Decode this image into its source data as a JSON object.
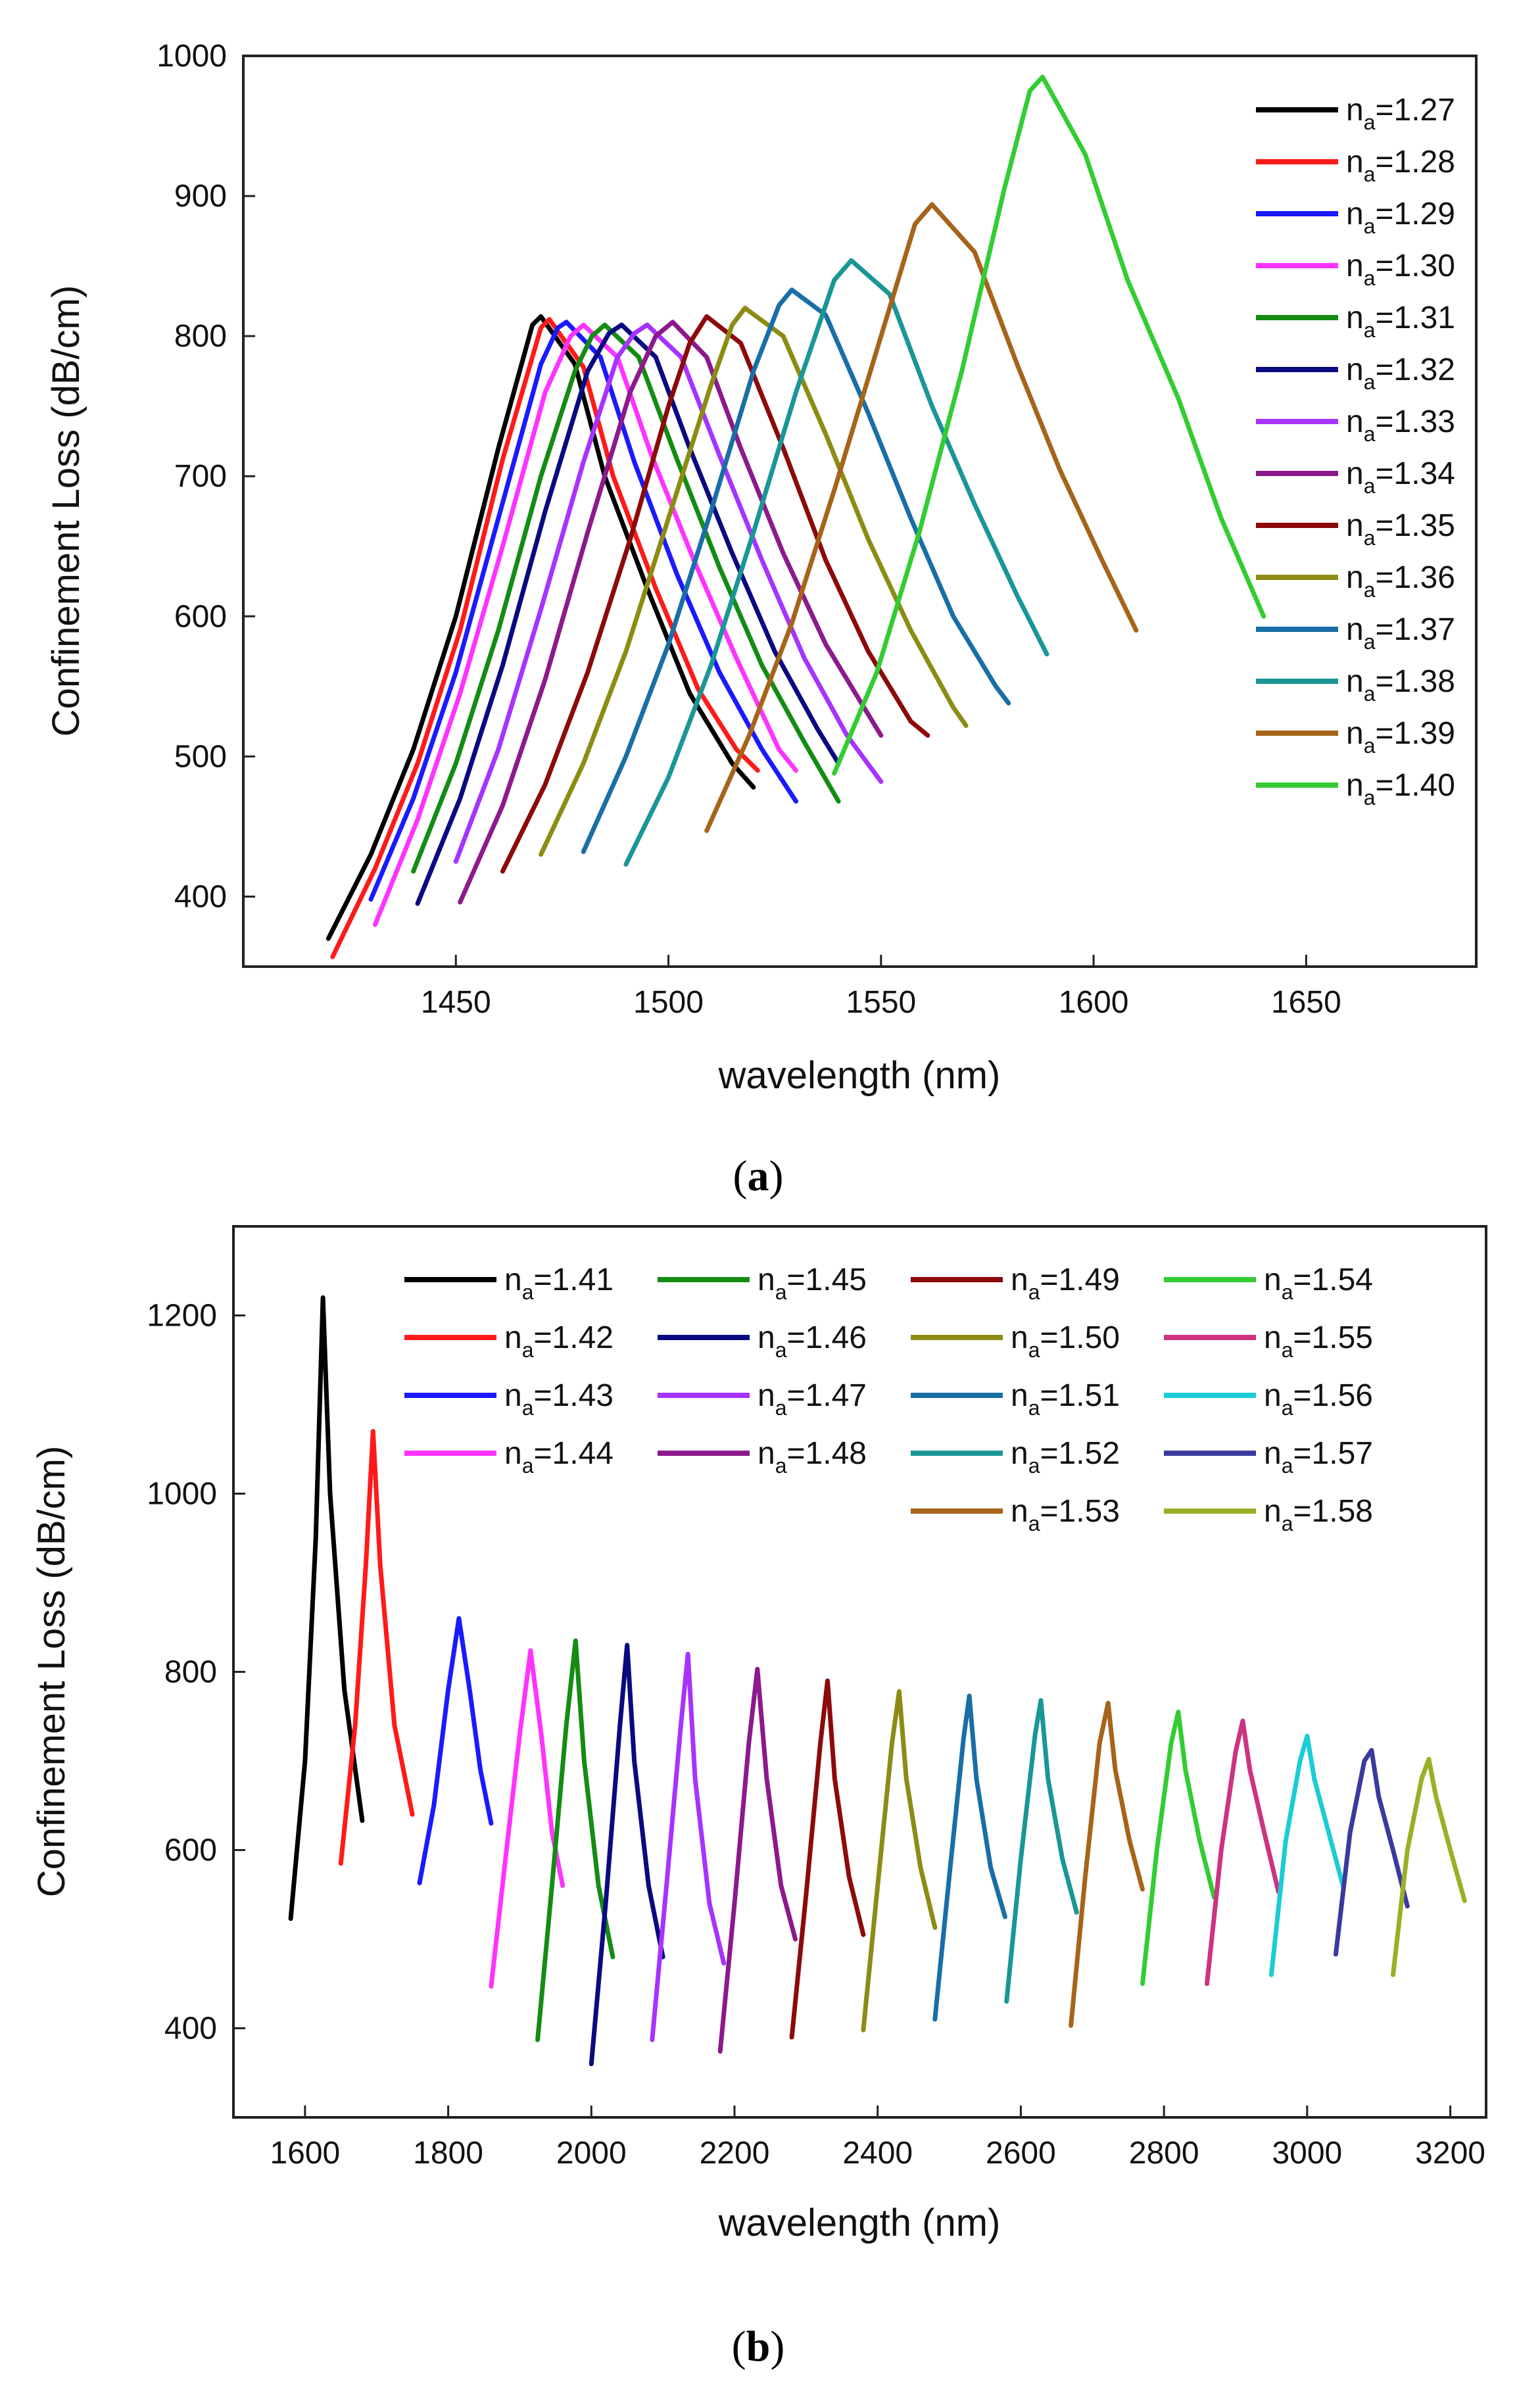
{
  "chart_data": [
    {
      "type": "line",
      "caption": "a",
      "xlabel": "wavelength (nm)",
      "ylabel": "Confinement  Loss (dB/cm)",
      "xlim": [
        1400,
        1690
      ],
      "ylim": [
        350,
        1000
      ],
      "xticks": [
        1450,
        1500,
        1550,
        1600,
        1650
      ],
      "yticks": [
        400,
        500,
        600,
        700,
        800,
        900,
        1000
      ],
      "legend_position": "top-right",
      "series": [
        {
          "name": "n_a=1.27",
          "sub": "a",
          "value": "1.27",
          "color": "#000000",
          "x": [
            1420,
            1430,
            1440,
            1450,
            1460,
            1468,
            1470,
            1478,
            1485,
            1495,
            1505,
            1515,
            1520
          ],
          "y": [
            370,
            430,
            505,
            600,
            720,
            808,
            814,
            780,
            700,
            620,
            545,
            495,
            478
          ]
        },
        {
          "name": "n_a=1.28",
          "sub": "a",
          "value": "1.28",
          "color": "#ff1a1a",
          "x": [
            1421,
            1431,
            1441,
            1451,
            1461,
            1470,
            1472,
            1480,
            1487,
            1497,
            1507,
            1516,
            1521
          ],
          "y": [
            357,
            420,
            495,
            590,
            712,
            806,
            812,
            778,
            700,
            620,
            548,
            505,
            490
          ]
        },
        {
          "name": "n_a=1.29",
          "sub": "a",
          "value": "1.29",
          "color": "#1a1aff",
          "x": [
            1430,
            1440,
            1450,
            1460,
            1470,
            1474,
            1476,
            1484,
            1492,
            1502,
            1512,
            1522,
            1530
          ],
          "y": [
            398,
            470,
            560,
            670,
            780,
            806,
            810,
            785,
            710,
            630,
            560,
            505,
            468
          ]
        },
        {
          "name": "n_a=1.30",
          "sub": "a",
          "value": "1.30",
          "color": "#ff33ff",
          "x": [
            1431,
            1441,
            1451,
            1461,
            1471,
            1477,
            1480,
            1488,
            1496,
            1506,
            1516,
            1526,
            1530
          ],
          "y": [
            380,
            455,
            545,
            650,
            760,
            800,
            808,
            785,
            715,
            640,
            570,
            505,
            490
          ]
        },
        {
          "name": "n_a=1.31",
          "sub": "a",
          "value": "1.31",
          "color": "#148c14",
          "x": [
            1440,
            1450,
            1460,
            1470,
            1478,
            1482,
            1485,
            1493,
            1502,
            1512,
            1522,
            1532,
            1540
          ],
          "y": [
            418,
            495,
            590,
            700,
            775,
            800,
            808,
            785,
            712,
            635,
            565,
            510,
            468
          ]
        },
        {
          "name": "n_a=1.32",
          "sub": "a",
          "value": "1.32",
          "color": "#0a0a80",
          "x": [
            1441,
            1451,
            1461,
            1471,
            1481,
            1486,
            1489,
            1497,
            1505,
            1515,
            1525,
            1535,
            1540
          ],
          "y": [
            395,
            470,
            565,
            675,
            775,
            802,
            808,
            785,
            720,
            645,
            575,
            520,
            495
          ]
        },
        {
          "name": "n_a=1.33",
          "sub": "a",
          "value": "1.33",
          "color": "#a633ff",
          "x": [
            1450,
            1460,
            1470,
            1480,
            1488,
            1492,
            1495,
            1503,
            1512,
            1522,
            1532,
            1542,
            1550
          ],
          "y": [
            425,
            505,
            605,
            710,
            785,
            802,
            808,
            785,
            715,
            640,
            570,
            515,
            482
          ]
        },
        {
          "name": "n_a=1.34",
          "sub": "a",
          "value": "1.34",
          "color": "#8c1a8c",
          "x": [
            1451,
            1461,
            1471,
            1481,
            1491,
            1497,
            1501,
            1509,
            1517,
            1527,
            1537,
            1547,
            1550
          ],
          "y": [
            396,
            465,
            555,
            660,
            760,
            800,
            810,
            785,
            720,
            645,
            580,
            530,
            515
          ]
        },
        {
          "name": "n_a=1.35",
          "sub": "a",
          "value": "1.35",
          "color": "#8c0a0a",
          "x": [
            1461,
            1471,
            1481,
            1491,
            1500,
            1505,
            1509,
            1517,
            1527,
            1537,
            1547,
            1557,
            1561
          ],
          "y": [
            418,
            480,
            560,
            655,
            750,
            795,
            814,
            795,
            720,
            640,
            575,
            525,
            515
          ]
        },
        {
          "name": "n_a=1.36",
          "sub": "a",
          "value": "1.36",
          "color": "#8c8c14",
          "x": [
            1470,
            1480,
            1490,
            1500,
            1510,
            1515,
            1518,
            1527,
            1537,
            1547,
            1557,
            1567,
            1570
          ],
          "y": [
            430,
            495,
            575,
            670,
            765,
            808,
            820,
            800,
            730,
            655,
            590,
            535,
            522
          ]
        },
        {
          "name": "n_a=1.37",
          "sub": "a",
          "value": "1.37",
          "color": "#1a6ea6",
          "x": [
            1480,
            1490,
            1500,
            1510,
            1520,
            1526,
            1529,
            1537,
            1547,
            1557,
            1567,
            1577,
            1580
          ],
          "y": [
            432,
            500,
            580,
            675,
            775,
            822,
            833,
            815,
            745,
            670,
            600,
            550,
            538
          ]
        },
        {
          "name": "n_a=1.38",
          "sub": "a",
          "value": "1.38",
          "color": "#1a9696",
          "x": [
            1490,
            1500,
            1510,
            1520,
            1530,
            1539,
            1543,
            1552,
            1562,
            1572,
            1582,
            1589
          ],
          "y": [
            423,
            485,
            565,
            660,
            760,
            840,
            854,
            830,
            750,
            680,
            615,
            573
          ]
        },
        {
          "name": "n_a=1.39",
          "sub": "a",
          "value": "1.39",
          "color": "#a6641a",
          "x": [
            1509,
            1519,
            1529,
            1539,
            1549,
            1558,
            1562,
            1572,
            1582,
            1592,
            1602,
            1610
          ],
          "y": [
            447,
            515,
            595,
            690,
            790,
            880,
            894,
            860,
            780,
            705,
            640,
            590
          ]
        },
        {
          "name": "n_a=1.40",
          "sub": "a",
          "value": "1.40",
          "color": "#33cc33",
          "x": [
            1539,
            1549,
            1559,
            1569,
            1579,
            1585,
            1588,
            1598,
            1608,
            1620,
            1630,
            1640
          ],
          "y": [
            488,
            560,
            660,
            775,
            905,
            975,
            985,
            930,
            840,
            755,
            670,
            600
          ]
        }
      ]
    },
    {
      "type": "line",
      "caption": "b",
      "xlabel": "wavelength (nm)",
      "ylabel": "Confinement  Loss (dB/cm)",
      "xlim": [
        1500,
        3250
      ],
      "ylim": [
        300,
        1300
      ],
      "xticks": [
        1600,
        1800,
        2000,
        2200,
        2400,
        2600,
        2800,
        3000,
        3200
      ],
      "yticks": [
        400,
        600,
        800,
        1000,
        1200
      ],
      "legend_position": "top",
      "series": [
        {
          "name": "n_a=1.41",
          "sub": "a",
          "value": "1.41",
          "color": "#000000",
          "x": [
            1580,
            1600,
            1615,
            1625,
            1635,
            1655,
            1680
          ],
          "y": [
            523,
            700,
            950,
            1220,
            1000,
            780,
            633
          ]
        },
        {
          "name": "n_a=1.42",
          "sub": "a",
          "value": "1.42",
          "color": "#ff1a1a",
          "x": [
            1650,
            1670,
            1685,
            1695,
            1705,
            1725,
            1750
          ],
          "y": [
            585,
            740,
            920,
            1070,
            920,
            740,
            640
          ]
        },
        {
          "name": "n_a=1.43",
          "sub": "a",
          "value": "1.43",
          "color": "#1a1aff",
          "x": [
            1760,
            1780,
            1800,
            1815,
            1830,
            1845,
            1860
          ],
          "y": [
            563,
            650,
            780,
            860,
            780,
            690,
            630
          ]
        },
        {
          "name": "n_a=1.44",
          "sub": "a",
          "value": "1.44",
          "color": "#ff33ff",
          "x": [
            1860,
            1880,
            1900,
            1915,
            1930,
            1945,
            1960
          ],
          "y": [
            447,
            590,
            730,
            824,
            730,
            620,
            560
          ]
        },
        {
          "name": "n_a=1.45",
          "sub": "a",
          "value": "1.45",
          "color": "#148c14",
          "x": [
            1925,
            1945,
            1965,
            1978,
            1990,
            2010,
            2030
          ],
          "y": [
            387,
            560,
            740,
            835,
            700,
            560,
            480
          ]
        },
        {
          "name": "n_a=1.46",
          "sub": "a",
          "value": "1.46",
          "color": "#0a0a80",
          "x": [
            2000,
            2020,
            2040,
            2050,
            2060,
            2080,
            2100
          ],
          "y": [
            360,
            540,
            740,
            830,
            700,
            560,
            480
          ]
        },
        {
          "name": "n_a=1.47",
          "sub": "a",
          "value": "1.47",
          "color": "#a633ff",
          "x": [
            2085,
            2105,
            2125,
            2135,
            2145,
            2165,
            2185
          ],
          "y": [
            387,
            560,
            740,
            820,
            680,
            540,
            473
          ]
        },
        {
          "name": "n_a=1.48",
          "sub": "a",
          "value": "1.48",
          "color": "#8c1a8c",
          "x": [
            2180,
            2200,
            2220,
            2232,
            2245,
            2265,
            2285
          ],
          "y": [
            374,
            540,
            720,
            803,
            680,
            560,
            500
          ]
        },
        {
          "name": "n_a=1.49",
          "sub": "a",
          "value": "1.49",
          "color": "#8c0a0a",
          "x": [
            2280,
            2300,
            2320,
            2330,
            2340,
            2360,
            2380
          ],
          "y": [
            390,
            550,
            720,
            790,
            680,
            570,
            505
          ]
        },
        {
          "name": "n_a=1.50",
          "sub": "a",
          "value": "1.50",
          "color": "#8c8c14",
          "x": [
            2380,
            2400,
            2420,
            2430,
            2440,
            2460,
            2480
          ],
          "y": [
            398,
            560,
            720,
            778,
            680,
            580,
            513
          ]
        },
        {
          "name": "n_a=1.51",
          "sub": "a",
          "value": "1.51",
          "color": "#1a6ea6",
          "x": [
            2480,
            2500,
            2520,
            2528,
            2538,
            2558,
            2578
          ],
          "y": [
            410,
            570,
            725,
            773,
            680,
            580,
            525
          ]
        },
        {
          "name": "n_a=1.52",
          "sub": "a",
          "value": "1.52",
          "color": "#1a9696",
          "x": [
            2580,
            2600,
            2620,
            2628,
            2638,
            2658,
            2678
          ],
          "y": [
            430,
            590,
            730,
            768,
            680,
            590,
            530
          ]
        },
        {
          "name": "n_a=1.53",
          "sub": "a",
          "value": "1.53",
          "color": "#a6641a",
          "x": [
            2670,
            2690,
            2710,
            2722,
            2732,
            2752,
            2770
          ],
          "y": [
            403,
            570,
            720,
            765,
            690,
            610,
            556
          ]
        },
        {
          "name": "n_a=1.54",
          "sub": "a",
          "value": "1.54",
          "color": "#33cc33",
          "x": [
            2770,
            2790,
            2810,
            2820,
            2830,
            2850,
            2870
          ],
          "y": [
            450,
            600,
            720,
            755,
            690,
            610,
            547
          ]
        },
        {
          "name": "n_a=1.55",
          "sub": "a",
          "value": "1.55",
          "color": "#cc3380",
          "x": [
            2860,
            2880,
            2900,
            2910,
            2920,
            2940,
            2960
          ],
          "y": [
            450,
            600,
            710,
            745,
            690,
            620,
            553
          ]
        },
        {
          "name": "n_a=1.56",
          "sub": "a",
          "value": "1.56",
          "color": "#1accd6",
          "x": [
            2950,
            2970,
            2990,
            3000,
            3010,
            3030,
            3050
          ],
          "y": [
            460,
            610,
            700,
            728,
            680,
            620,
            560
          ]
        },
        {
          "name": "n_a=1.57",
          "sub": "a",
          "value": "1.57",
          "color": "#3a3a9e",
          "x": [
            3040,
            3060,
            3080,
            3090,
            3100,
            3120,
            3140
          ],
          "y": [
            483,
            620,
            700,
            712,
            660,
            600,
            537
          ]
        },
        {
          "name": "n_a=1.58",
          "sub": "a",
          "value": "1.58",
          "color": "#99b026",
          "x": [
            3120,
            3140,
            3160,
            3170,
            3180,
            3200,
            3220
          ],
          "y": [
            460,
            600,
            680,
            702,
            660,
            600,
            543
          ]
        }
      ]
    }
  ]
}
